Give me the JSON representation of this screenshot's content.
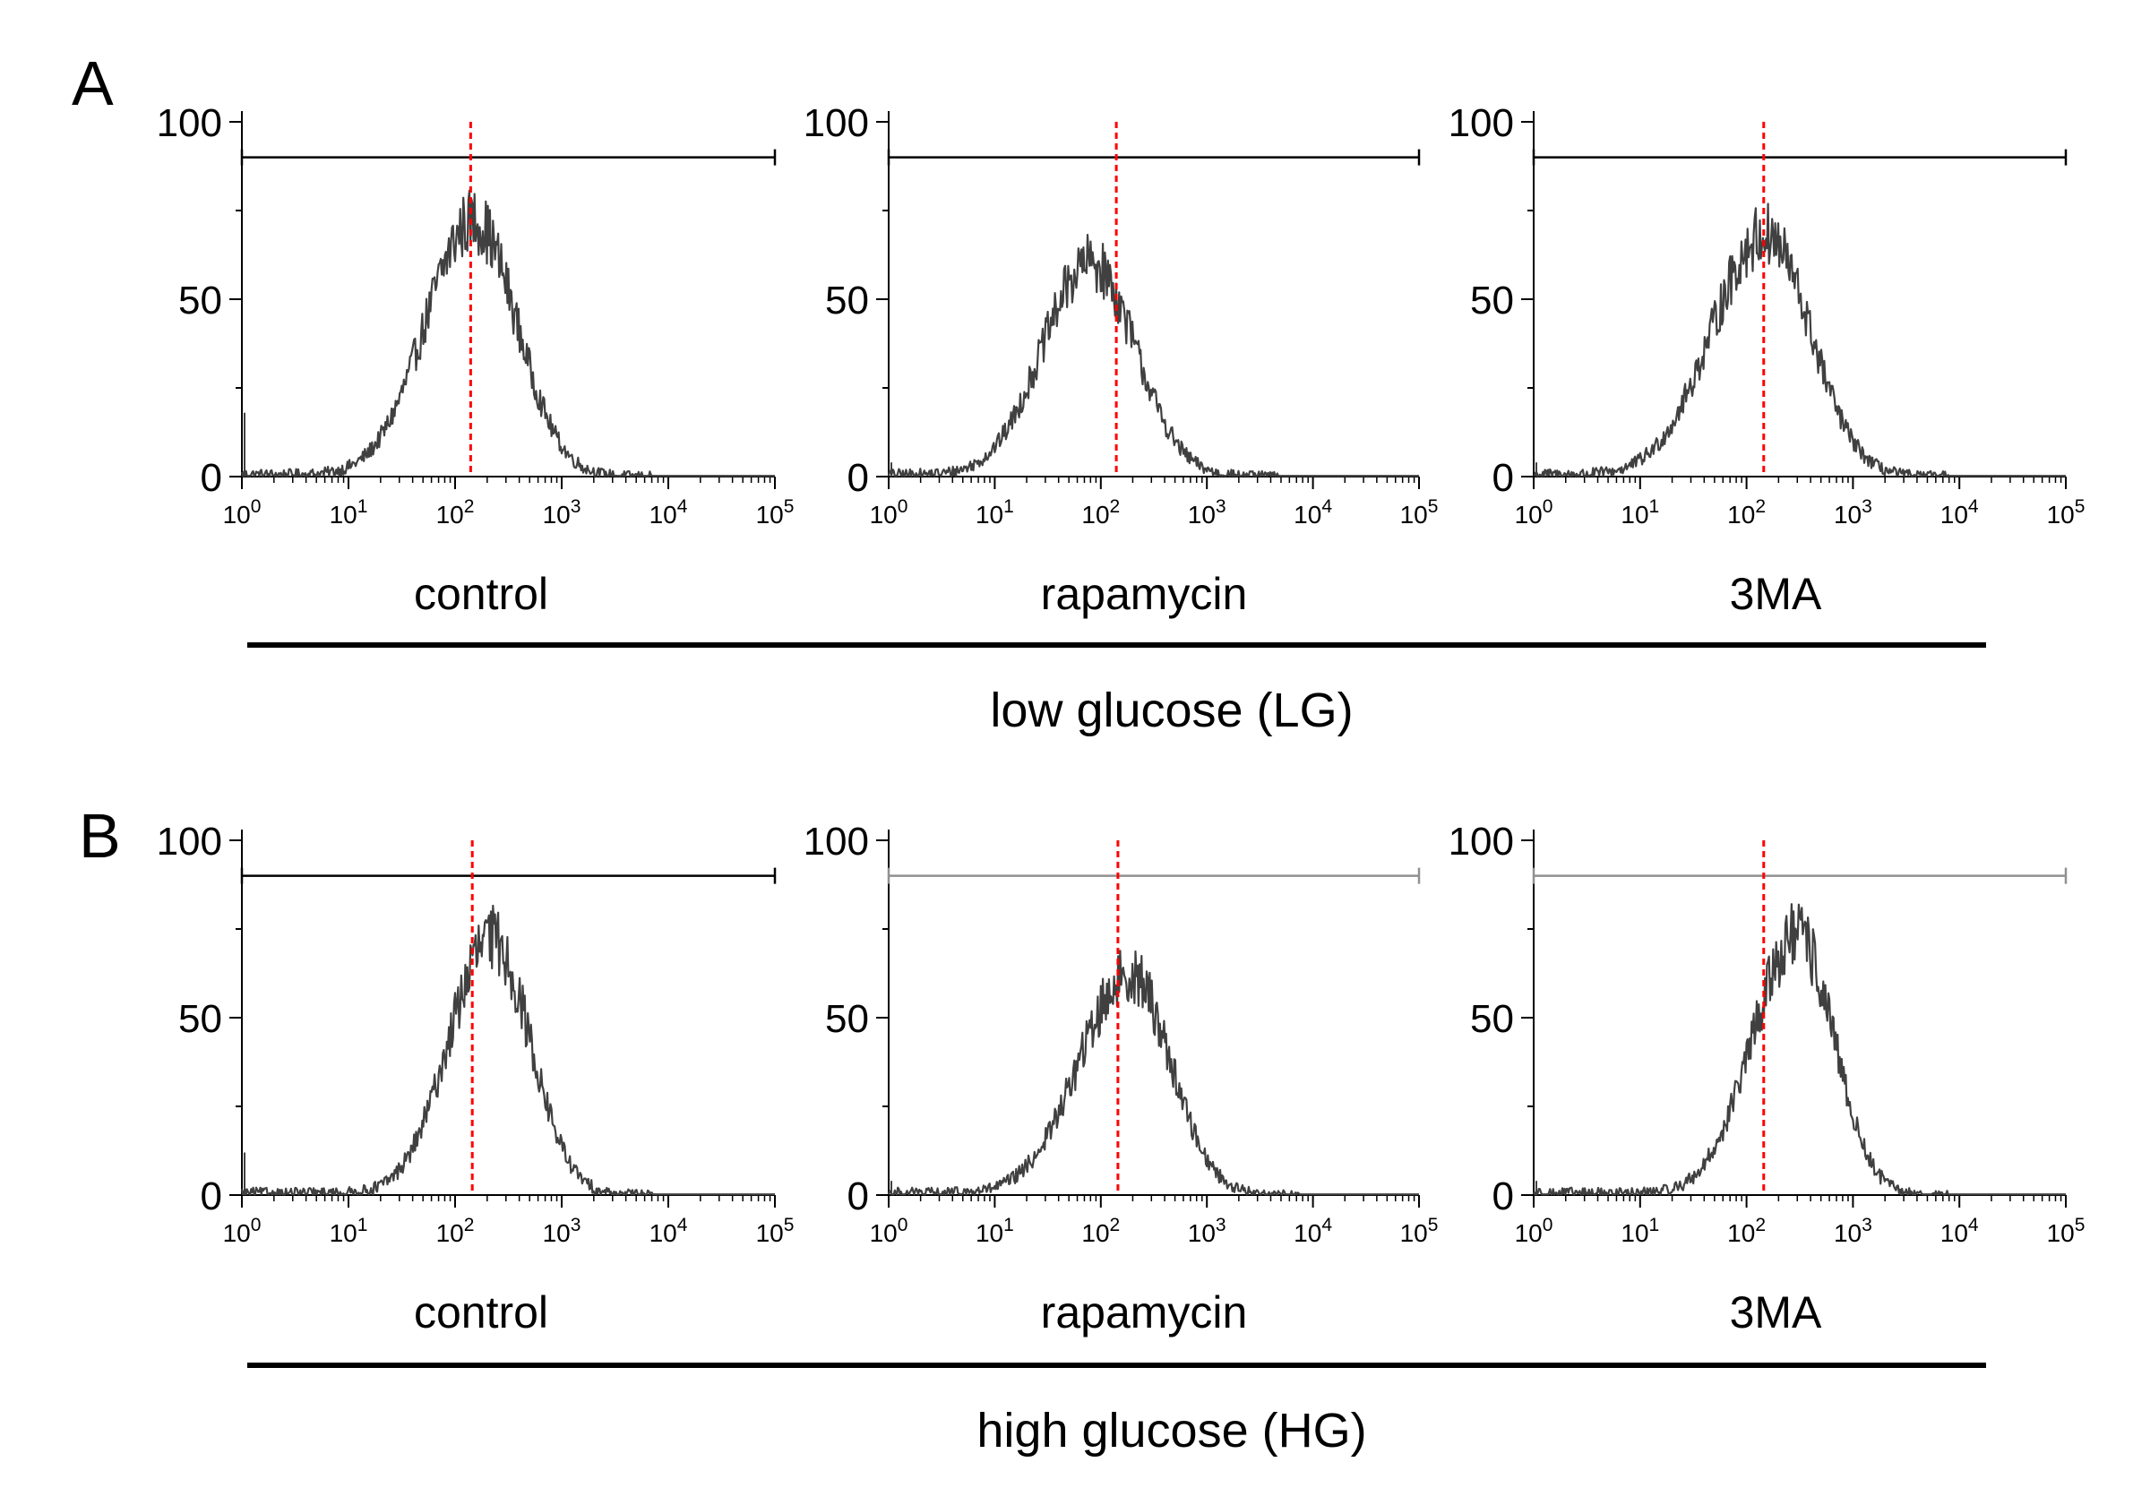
{
  "colors": {
    "histogram": "#404040",
    "marker_line": "#ff0000",
    "axis": "#000000",
    "gate_dark": "#000000",
    "gate_light": "#909090"
  },
  "panels": [
    {
      "letter": "A",
      "group_label": "low glucose  (LG)"
    },
    {
      "letter": "B",
      "group_label": "high glucose  (HG)"
    }
  ],
  "chart_data": [
    {
      "type": "histogram",
      "panel": "A",
      "title": "control",
      "x_scale": "log",
      "xlim": [
        1,
        100000
      ],
      "ylim": [
        0,
        100
      ],
      "x_tick_labels": [
        "10^0",
        "10^1",
        "10^2",
        "10^3",
        "10^4",
        "10^5"
      ],
      "y_tick_labels": [
        "0",
        "50",
        "100"
      ],
      "gate": {
        "x_range": [
          1,
          100000
        ],
        "y": 90
      },
      "marker_x": 140,
      "distribution": {
        "peak_x": 150,
        "peak_count": 72,
        "log_width_left": 0.45,
        "log_width_right": 0.4,
        "tail_height": 1
      }
    },
    {
      "type": "histogram",
      "panel": "A",
      "title": "rapamycin",
      "x_scale": "log",
      "xlim": [
        1,
        100000
      ],
      "ylim": [
        0,
        100
      ],
      "x_tick_labels": [
        "10^0",
        "10^1",
        "10^2",
        "10^3",
        "10^4",
        "10^5"
      ],
      "y_tick_labels": [
        "0",
        "50",
        "100"
      ],
      "gate": {
        "x_range": [
          1,
          100000
        ],
        "y": 90
      },
      "marker_x": 140,
      "distribution": {
        "peak_x": 80,
        "peak_count": 60,
        "log_width_left": 0.45,
        "log_width_right": 0.42,
        "tail_height": 1
      }
    },
    {
      "type": "histogram",
      "panel": "A",
      "title": "3MA",
      "x_scale": "log",
      "xlim": [
        1,
        100000
      ],
      "ylim": [
        0,
        100
      ],
      "x_tick_labels": [
        "10^0",
        "10^1",
        "10^2",
        "10^3",
        "10^4",
        "10^5"
      ],
      "y_tick_labels": [
        "0",
        "50",
        "100"
      ],
      "gate": {
        "x_range": [
          1,
          100000
        ],
        "y": 90
      },
      "marker_x": 145,
      "distribution": {
        "peak_x": 150,
        "peak_count": 68,
        "log_width_left": 0.5,
        "log_width_right": 0.42,
        "tail_height": 1
      }
    },
    {
      "type": "histogram",
      "panel": "B",
      "title": "control",
      "x_scale": "log",
      "xlim": [
        1,
        100000
      ],
      "ylim": [
        0,
        100
      ],
      "x_tick_labels": [
        "10^0",
        "10^1",
        "10^2",
        "10^3",
        "10^4",
        "10^5"
      ],
      "y_tick_labels": [
        "0",
        "50",
        "100"
      ],
      "gate": {
        "x_range": [
          1,
          100000
        ],
        "y": 90
      },
      "marker_x": 145,
      "distribution": {
        "peak_x": 220,
        "peak_count": 72,
        "log_width_left": 0.4,
        "log_width_right": 0.36,
        "tail_height": 1
      }
    },
    {
      "type": "histogram",
      "panel": "B",
      "title": "rapamycin",
      "x_scale": "log",
      "xlim": [
        1,
        100000
      ],
      "ylim": [
        0,
        100
      ],
      "x_tick_labels": [
        "10^0",
        "10^1",
        "10^2",
        "10^3",
        "10^4",
        "10^5"
      ],
      "y_tick_labels": [
        "0",
        "50",
        "100"
      ],
      "gate": {
        "x_range": [
          1,
          100000
        ],
        "y": 90
      },
      "marker_x": 145,
      "distribution": {
        "peak_x": 190,
        "peak_count": 62,
        "log_width_left": 0.48,
        "log_width_right": 0.38,
        "tail_height": 1
      }
    },
    {
      "type": "histogram",
      "panel": "B",
      "title": "3MA",
      "x_scale": "log",
      "xlim": [
        1,
        100000
      ],
      "ylim": [
        0,
        100
      ],
      "x_tick_labels": [
        "10^0",
        "10^1",
        "10^2",
        "10^3",
        "10^4",
        "10^5"
      ],
      "y_tick_labels": [
        "0",
        "50",
        "100"
      ],
      "gate": {
        "x_range": [
          1,
          100000
        ],
        "y": 90
      },
      "marker_x": 145,
      "distribution": {
        "peak_x": 300,
        "peak_count": 73,
        "log_width_left": 0.42,
        "log_width_right": 0.34,
        "tail_height": 1
      }
    }
  ]
}
